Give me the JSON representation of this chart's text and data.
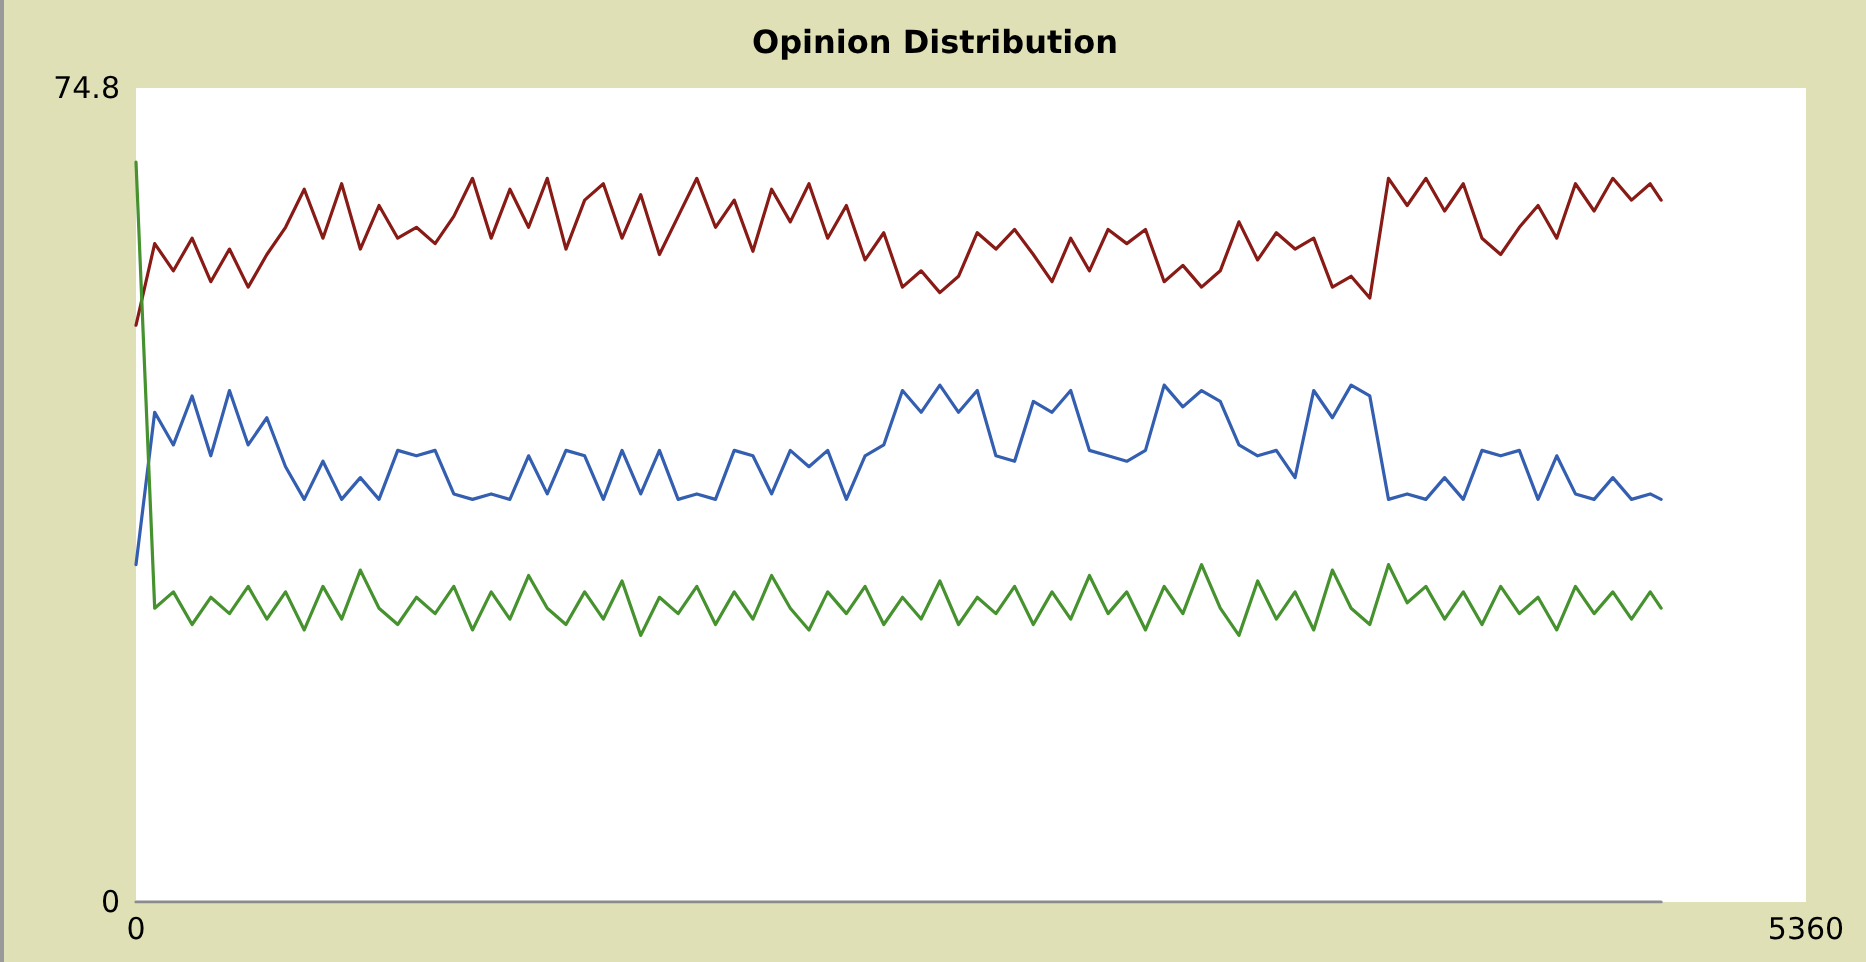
{
  "chart_data": {
    "type": "line",
    "title": "Opinion Distribution",
    "x": [
      0,
      60,
      120,
      180,
      240,
      300,
      360,
      420,
      480,
      540,
      600,
      660,
      720,
      780,
      840,
      900,
      960,
      1020,
      1080,
      1140,
      1200,
      1260,
      1320,
      1380,
      1440,
      1500,
      1560,
      1620,
      1680,
      1740,
      1800,
      1860,
      1920,
      1980,
      2040,
      2100,
      2160,
      2220,
      2280,
      2340,
      2400,
      2460,
      2520,
      2580,
      2640,
      2700,
      2760,
      2820,
      2880,
      2940,
      3000,
      3060,
      3120,
      3180,
      3240,
      3300,
      3360,
      3420,
      3480,
      3540,
      3600,
      3660,
      3720,
      3780,
      3840,
      3900,
      3960,
      4020,
      4080,
      4140,
      4200,
      4260,
      4320,
      4380,
      4440,
      4500,
      4560,
      4620,
      4680,
      4740,
      4800,
      4860,
      4895
    ],
    "series": [
      {
        "color": "#891b16",
        "values": [
          53,
          60.5,
          58,
          61,
          57,
          60,
          56.5,
          59.5,
          62,
          65.5,
          61,
          66,
          60,
          64,
          61,
          62,
          60.5,
          63,
          66.5,
          61,
          65.5,
          62,
          66.5,
          60,
          64.5,
          66,
          61,
          65,
          59.5,
          63,
          66.5,
          62,
          64.5,
          59.8,
          65.5,
          62.5,
          66,
          61,
          64,
          59,
          61.5,
          56.5,
          58,
          56,
          57.5,
          61.5,
          60,
          61.8,
          59.5,
          57,
          61,
          58,
          61.8,
          60.5,
          61.8,
          57,
          58.5,
          56.5,
          58,
          62.5,
          59,
          61.5,
          60,
          61,
          56.5,
          57.5,
          55.5,
          66.5,
          64,
          66.5,
          63.5,
          66,
          61,
          59.5,
          62,
          64,
          61,
          66,
          63.5,
          66.5,
          64.5,
          66,
          64.5
        ]
      },
      {
        "color": "#345fb0",
        "values": [
          31,
          45,
          42,
          46.5,
          41,
          47,
          42,
          44.5,
          40,
          37,
          40.5,
          37,
          39,
          37,
          41.5,
          41,
          41.5,
          37.5,
          37,
          37.5,
          37,
          41,
          37.5,
          41.5,
          41,
          37,
          41.5,
          37.5,
          41.5,
          37,
          37.5,
          37,
          41.5,
          41,
          37.5,
          41.5,
          40,
          41.5,
          37,
          41,
          42,
          47,
          45,
          47.5,
          45,
          47,
          41,
          40.5,
          46,
          45,
          47,
          41.5,
          41,
          40.5,
          41.5,
          47.5,
          45.5,
          47,
          46,
          42,
          41,
          41.5,
          39,
          47,
          44.5,
          47.5,
          46.5,
          37,
          37.5,
          37,
          39,
          37,
          41.5,
          41,
          41.5,
          37,
          41,
          37.5,
          37,
          39,
          37,
          37.5,
          37
        ]
      },
      {
        "color": "#46922f",
        "values": [
          68,
          27,
          28.5,
          25.5,
          28,
          26.5,
          29,
          26,
          28.5,
          25,
          29,
          26,
          30.5,
          27,
          25.5,
          28,
          26.5,
          29,
          25,
          28.5,
          26,
          30,
          27,
          25.5,
          28.5,
          26,
          29.5,
          24.5,
          28,
          26.5,
          29,
          25.5,
          28.5,
          26,
          30,
          27,
          25,
          28.5,
          26.5,
          29,
          25.5,
          28,
          26,
          29.5,
          25.5,
          28,
          26.5,
          29,
          25.5,
          28.5,
          26,
          30,
          26.5,
          28.5,
          25,
          29,
          26.5,
          31,
          27,
          24.5,
          29.5,
          26,
          28.5,
          25,
          30.5,
          27,
          25.5,
          31,
          27.5,
          29,
          26,
          28.5,
          25.5,
          29,
          26.5,
          28,
          25,
          29,
          26.5,
          28.5,
          26,
          28.5,
          27
        ]
      },
      {
        "color": "#8c8c8c",
        "x": [
          0,
          4895
        ],
        "values": [
          0,
          0
        ]
      }
    ],
    "xlim": [
      0,
      5360
    ],
    "xticks": [
      0,
      5360
    ],
    "ylim": [
      0,
      74.8
    ],
    "yticks": [
      0,
      74.8
    ],
    "grid": false,
    "marker": "none",
    "line_style": "solid"
  }
}
